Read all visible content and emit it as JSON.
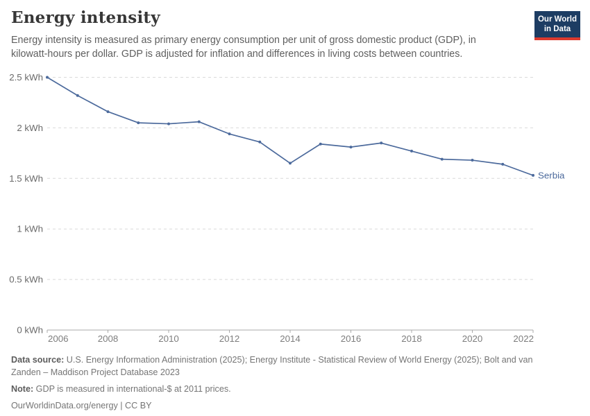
{
  "header": {
    "title": "Energy intensity",
    "subtitle": "Energy intensity is measured as primary energy consumption per unit of gross domestic product (GDP), in kilowatt-hours per dollar. GDP is adjusted for inflation and differences in living costs between countries.",
    "logo": {
      "line1": "Our World",
      "line2": "in Data",
      "background_color": "#1d3d63",
      "bar_color": "#dc3a2e"
    }
  },
  "chart_data": {
    "type": "line",
    "title": "Energy intensity",
    "ylabel": "",
    "xlabel": "",
    "unit": "kWh",
    "ylim": [
      0,
      2.5
    ],
    "xlim": [
      2006,
      2022
    ],
    "grid": "dashed-horizontal",
    "legend_position": "end-of-line-label",
    "x": [
      2006,
      2007,
      2008,
      2009,
      2010,
      2011,
      2012,
      2013,
      2014,
      2015,
      2016,
      2017,
      2018,
      2019,
      2020,
      2021,
      2022
    ],
    "series": [
      {
        "name": "Serbia",
        "color": "#4c6a9c",
        "values": [
          2.5,
          2.32,
          2.16,
          2.05,
          2.04,
          2.06,
          1.94,
          1.86,
          1.65,
          1.84,
          1.81,
          1.85,
          1.77,
          1.69,
          1.68,
          1.64,
          1.53
        ]
      }
    ],
    "yticks": [
      {
        "value": 0,
        "label": "0 kWh"
      },
      {
        "value": 0.5,
        "label": "0.5 kWh"
      },
      {
        "value": 1,
        "label": "1 kWh"
      },
      {
        "value": 1.5,
        "label": "1.5 kWh"
      },
      {
        "value": 2,
        "label": "2 kWh"
      },
      {
        "value": 2.5,
        "label": "2.5 kWh"
      }
    ],
    "xticks": [
      {
        "value": 2006,
        "label": "2006"
      },
      {
        "value": 2008,
        "label": "2008"
      },
      {
        "value": 2010,
        "label": "2010"
      },
      {
        "value": 2012,
        "label": "2012"
      },
      {
        "value": 2014,
        "label": "2014"
      },
      {
        "value": 2016,
        "label": "2016"
      },
      {
        "value": 2018,
        "label": "2018"
      },
      {
        "value": 2020,
        "label": "2020"
      },
      {
        "value": 2022,
        "label": "2022"
      }
    ],
    "style": {
      "gridline_color": "#d9d9d9",
      "axis_color": "#a8a8a8",
      "ytick_label_color": "#6a6a6a",
      "xtick_label_color": "#7d7d7d"
    }
  },
  "footer": {
    "data_source_label": "Data source:",
    "data_source_text": " U.S. Energy Information Administration (2025); Energy Institute - Statistical Review of World Energy (2025); Bolt and van Zanden – Maddison Project Database 2023",
    "note_label": "Note:",
    "note_text": " GDP is measured in international-$ at 2011 prices.",
    "license_text": "OurWorldinData.org/energy | CC BY"
  }
}
